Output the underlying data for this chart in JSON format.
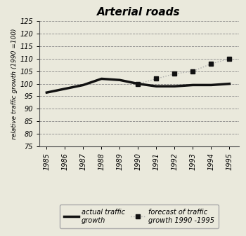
{
  "title": "Arterial roads",
  "ylabel": "relative traffic growth (1990 =100)",
  "background_color": "#eae9dc",
  "xlim_min": 1984.6,
  "xlim_max": 1995.5,
  "ylim": [
    75,
    125
  ],
  "yticks": [
    75,
    80,
    85,
    90,
    95,
    100,
    105,
    110,
    115,
    120,
    125
  ],
  "xticks": [
    1985,
    1986,
    1987,
    1988,
    1989,
    1990,
    1991,
    1992,
    1993,
    1994,
    1995
  ],
  "actual_x": [
    1985,
    1986,
    1987,
    1988,
    1989,
    1990,
    1991,
    1992,
    1993,
    1994,
    1995
  ],
  "actual_y": [
    96.5,
    98.0,
    99.5,
    102.0,
    101.5,
    100.0,
    99.0,
    99.0,
    99.5,
    99.5,
    100.0
  ],
  "forecast_x": [
    1990,
    1991,
    1992,
    1993,
    1994,
    1995
  ],
  "forecast_y": [
    100.0,
    102.0,
    104.0,
    105.0,
    108.0,
    110.0
  ],
  "actual_color": "#111111",
  "actual_linewidth": 2.5,
  "forecast_line_color": "#aaaaaa",
  "forecast_marker_color": "#111111",
  "forecast_linewidth": 1.0,
  "forecast_markersize": 5,
  "grid_color": "#888888",
  "grid_linewidth": 0.6,
  "spine_color": "#555555",
  "legend1_label": "actual traffic\ngrowth",
  "legend2_label": "forecast of traffic\ngrowth 1990 -1995",
  "title_fontsize": 11,
  "ylabel_fontsize": 6.5,
  "tick_fontsize": 7,
  "legend_fontsize": 7
}
